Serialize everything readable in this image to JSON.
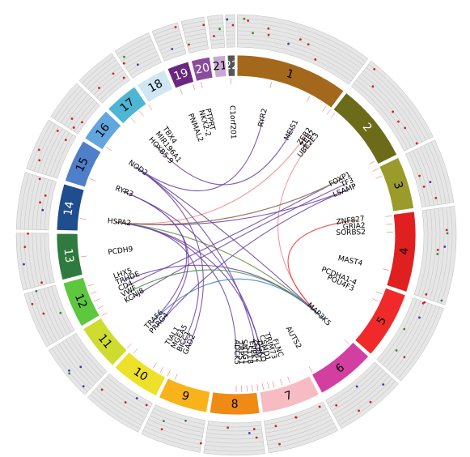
{
  "chromosomes": [
    {
      "label": "1",
      "color": "#a4681c"
    },
    {
      "label": "2",
      "color": "#6b6b1a"
    },
    {
      "label": "3",
      "color": "#9a9b2a"
    },
    {
      "label": "4",
      "color": "#e02020"
    },
    {
      "label": "5",
      "color": "#f02a2a"
    },
    {
      "label": "6",
      "color": "#d23fa0"
    },
    {
      "label": "7",
      "color": "#f7bcc3"
    },
    {
      "label": "8",
      "color": "#ef8b14"
    },
    {
      "label": "9",
      "color": "#f8b21a"
    },
    {
      "label": "10",
      "color": "#eee12a"
    },
    {
      "label": "11",
      "color": "#cddc2e"
    },
    {
      "label": "12",
      "color": "#5dc73f"
    },
    {
      "label": "13",
      "color": "#2f7a3e"
    },
    {
      "label": "14",
      "color": "#1f4d8e"
    },
    {
      "label": "15",
      "color": "#4f7fc8"
    },
    {
      "label": "16",
      "color": "#62a6df"
    },
    {
      "label": "17",
      "color": "#4cb6d4"
    },
    {
      "label": "18",
      "color": "#cfe7f2"
    },
    {
      "label": "19",
      "color": "#6a2680"
    },
    {
      "label": "20",
      "color": "#8a4b9e"
    },
    {
      "label": "21",
      "color": "#c9a9d4"
    },
    {
      "label": "22",
      "color": "#555555"
    }
  ],
  "genes": [
    {
      "name": "PTPRT",
      "chr": "20"
    },
    {
      "name": "NKX2-2",
      "chr": "20"
    },
    {
      "name": "PNMAL2",
      "chr": "19"
    },
    {
      "name": "C1orf201",
      "chr": "1"
    },
    {
      "name": "RYR2",
      "chr": "1"
    },
    {
      "name": "MEIS1",
      "chr": "2"
    },
    {
      "name": "ZEB2",
      "chr": "2"
    },
    {
      "name": "ZEB2",
      "chr": "2"
    },
    {
      "name": "UBE2E3",
      "chr": "2"
    },
    {
      "name": "FOXP1",
      "chr": "3"
    },
    {
      "name": "TF3",
      "chr": "3"
    },
    {
      "name": "LSAMP",
      "chr": "3"
    },
    {
      "name": "ZNF827",
      "chr": "4"
    },
    {
      "name": "GRIA2",
      "chr": "4"
    },
    {
      "name": "SORBS2",
      "chr": "4"
    },
    {
      "name": "MAST4",
      "chr": "5"
    },
    {
      "name": "PCDHA1-4",
      "chr": "5"
    },
    {
      "name": "POU4F3",
      "chr": "5"
    },
    {
      "name": "MAP3K5",
      "chr": "6"
    },
    {
      "name": "AUTS2",
      "chr": "7"
    },
    {
      "name": "FLNC",
      "chr": "7"
    },
    {
      "name": "TRIM73",
      "chr": "7"
    },
    {
      "name": "ADCK5",
      "chr": "8"
    },
    {
      "name": "TRPS1",
      "chr": "8"
    },
    {
      "name": "SNTG1",
      "chr": "8"
    },
    {
      "name": "ST18",
      "chr": "8"
    },
    {
      "name": "EPPK1",
      "chr": "8"
    },
    {
      "name": "ZFPM2",
      "chr": "8"
    },
    {
      "name": "DGKD",
      "chr": "8"
    },
    {
      "name": "CSMD1",
      "chr": "8"
    },
    {
      "name": "GAD2",
      "chr": "10"
    },
    {
      "name": "BICC1",
      "chr": "10"
    },
    {
      "name": "MGEA5",
      "chr": "10"
    },
    {
      "name": "TIAL1",
      "chr": "10"
    },
    {
      "name": "PRRG4",
      "chr": "11"
    },
    {
      "name": "TRAF6",
      "chr": "11"
    },
    {
      "name": "KCNJ8",
      "chr": "12"
    },
    {
      "name": "VWF",
      "chr": "12"
    },
    {
      "name": "CD4",
      "chr": "12"
    },
    {
      "name": "TRHDE",
      "chr": "12"
    },
    {
      "name": "LHX5",
      "chr": "12"
    },
    {
      "name": "PCDH9",
      "chr": "13"
    },
    {
      "name": "HSPA2",
      "chr": "14"
    },
    {
      "name": "RYR3",
      "chr": "15"
    },
    {
      "name": "NOD2",
      "chr": "16"
    },
    {
      "name": "HOXB5-9",
      "chr": "17"
    },
    {
      "name": "MIR196A1",
      "chr": "17"
    },
    {
      "name": "TBX4",
      "chr": "17"
    }
  ],
  "links": [
    {
      "from": "RYR2",
      "to": "NOD2",
      "color": "#6a3ea1"
    },
    {
      "from": "MEIS1",
      "to": "HOXB5-9",
      "color": "#6a3ea1"
    },
    {
      "from": "ZEB2",
      "to": "HSPA2",
      "color": "#f08a8a"
    },
    {
      "from": "UBE2E3",
      "to": "MAP3K5",
      "color": "#f08a8a"
    },
    {
      "from": "FOXP1",
      "to": "HSPA2",
      "color": "#4a3ea8"
    },
    {
      "from": "TF3",
      "to": "KCNJ8",
      "color": "#6a3ea1"
    },
    {
      "from": "LSAMP",
      "to": "HSPA2",
      "color": "#6a3ea1"
    },
    {
      "from": "LSAMP",
      "to": "PRRG4",
      "color": "#6a3ea1"
    },
    {
      "from": "ZNF827",
      "to": "MAP3K5",
      "color": "#e83030"
    },
    {
      "from": "HSPA2",
      "to": "MAP3K5",
      "color": "#5a8a3a"
    },
    {
      "from": "HSPA2",
      "to": "ADCK5",
      "color": "#6a3ea1"
    },
    {
      "from": "HSPA2",
      "to": "DGKD",
      "color": "#6a3ea1"
    },
    {
      "from": "HSPA2",
      "to": "BICC1",
      "color": "#6a3ea1"
    },
    {
      "from": "RYR3",
      "to": "DGKD",
      "color": "#6a3ea1"
    },
    {
      "from": "RYR3",
      "to": "TRAF6",
      "color": "#6a3ea1"
    },
    {
      "from": "NOD2",
      "to": "ZFPM2",
      "color": "#6a3ea1"
    },
    {
      "from": "NOD2",
      "to": "MAP3K5",
      "color": "#6a3ea1"
    },
    {
      "from": "NOD2",
      "to": "GAD2",
      "color": "#6a3ea1"
    },
    {
      "from": "TRHDE",
      "to": "MAP3K5",
      "color": "#6a3ea1"
    },
    {
      "from": "CD4",
      "to": "FOXP1",
      "color": "#6a3ea1"
    },
    {
      "from": "VWF",
      "to": "MAP3K5",
      "color": "#3a8a3a"
    },
    {
      "from": "TRAF6",
      "to": "MAP3K5",
      "color": "#3a7ac0"
    },
    {
      "from": "PRRG4",
      "to": "RYR3",
      "color": "#6a3ea1"
    },
    {
      "from": "HSPA2",
      "to": "FOXP1",
      "color": "#a8864a"
    }
  ]
}
